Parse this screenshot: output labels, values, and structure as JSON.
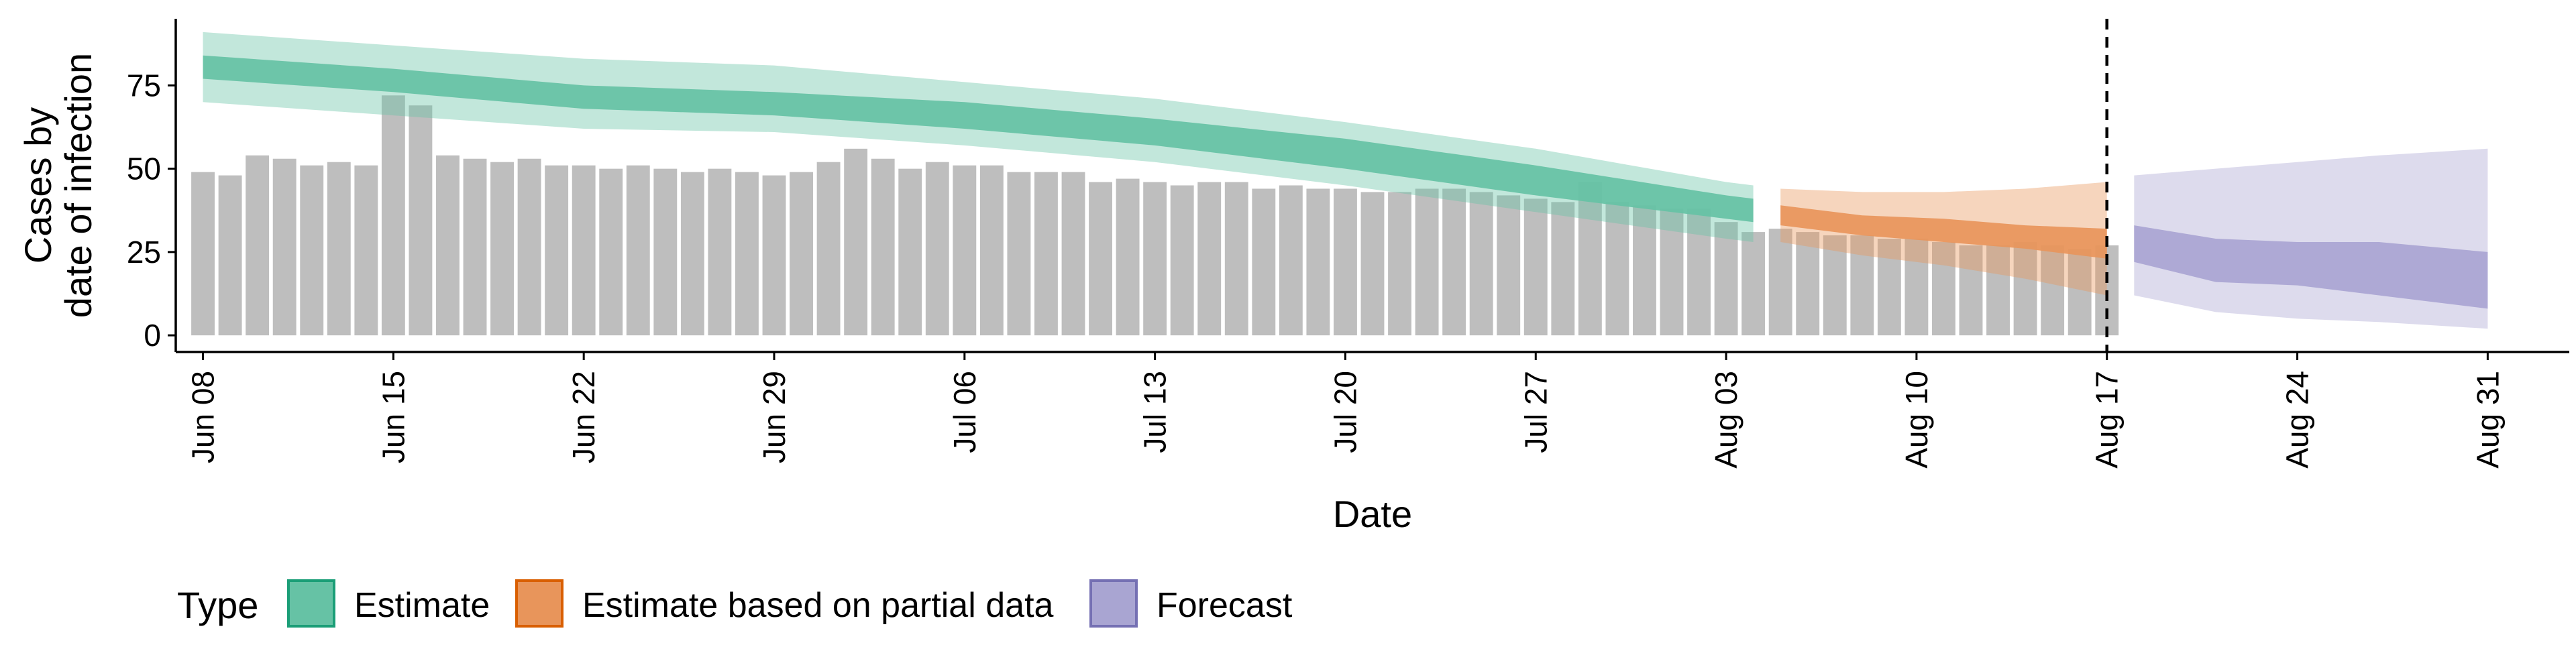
{
  "chart_data": {
    "type": "bar",
    "xlabel": "Date",
    "ylabel": "Cases by date of infection",
    "ylabel_lines": [
      "Cases by",
      "date of infection"
    ],
    "yticks": [
      0,
      25,
      50,
      75
    ],
    "ylim": [
      -5,
      95
    ],
    "xlim": [
      "2020-06-07",
      "2020-09-03"
    ],
    "xtick_labels": [
      "Jun 08",
      "Jun 15",
      "Jun 22",
      "Jun 29",
      "Jul 06",
      "Jul 13",
      "Jul 20",
      "Jul 27",
      "Aug 03",
      "Aug 10",
      "Aug 17",
      "Aug 24",
      "Aug 31"
    ],
    "xtick_dates": [
      "2020-06-08",
      "2020-06-15",
      "2020-06-22",
      "2020-06-29",
      "2020-07-06",
      "2020-07-13",
      "2020-07-20",
      "2020-07-27",
      "2020-08-03",
      "2020-08-10",
      "2020-08-17",
      "2020-08-24",
      "2020-08-31"
    ],
    "vline_date": "2020-08-17",
    "grid": false,
    "legend": {
      "title": "Type",
      "position": "bottom",
      "entries": [
        {
          "label": "Estimate",
          "fill": "#66C2A5",
          "border": "#1B9E77"
        },
        {
          "label": "Estimate based on partial data",
          "fill": "#E8955B",
          "border": "#D95F02"
        },
        {
          "label": "Forecast",
          "fill": "#A9A5D2",
          "border": "#7570B3"
        }
      ]
    },
    "bars": {
      "color": "#BEBEBE",
      "dates": [
        "2020-06-08",
        "2020-06-09",
        "2020-06-10",
        "2020-06-11",
        "2020-06-12",
        "2020-06-13",
        "2020-06-14",
        "2020-06-15",
        "2020-06-16",
        "2020-06-17",
        "2020-06-18",
        "2020-06-19",
        "2020-06-20",
        "2020-06-21",
        "2020-06-22",
        "2020-06-23",
        "2020-06-24",
        "2020-06-25",
        "2020-06-26",
        "2020-06-27",
        "2020-06-28",
        "2020-06-29",
        "2020-06-30",
        "2020-07-01",
        "2020-07-02",
        "2020-07-03",
        "2020-07-04",
        "2020-07-05",
        "2020-07-06",
        "2020-07-07",
        "2020-07-08",
        "2020-07-09",
        "2020-07-10",
        "2020-07-11",
        "2020-07-12",
        "2020-07-13",
        "2020-07-14",
        "2020-07-15",
        "2020-07-16",
        "2020-07-17",
        "2020-07-18",
        "2020-07-19",
        "2020-07-20",
        "2020-07-21",
        "2020-07-22",
        "2020-07-23",
        "2020-07-24",
        "2020-07-25",
        "2020-07-26",
        "2020-07-27",
        "2020-07-28",
        "2020-07-29",
        "2020-07-30",
        "2020-07-31",
        "2020-08-01",
        "2020-08-02",
        "2020-08-03",
        "2020-08-04",
        "2020-08-05",
        "2020-08-06",
        "2020-08-07",
        "2020-08-08",
        "2020-08-09",
        "2020-08-10",
        "2020-08-11",
        "2020-08-12",
        "2020-08-13",
        "2020-08-14",
        "2020-08-15",
        "2020-08-16",
        "2020-08-17"
      ],
      "values": [
        49,
        48,
        54,
        53,
        51,
        52,
        51,
        72,
        69,
        54,
        53,
        52,
        53,
        51,
        51,
        50,
        51,
        50,
        49,
        50,
        49,
        48,
        49,
        52,
        56,
        53,
        50,
        52,
        51,
        51,
        49,
        49,
        49,
        46,
        47,
        46,
        45,
        46,
        46,
        44,
        45,
        44,
        44,
        43,
        43,
        44,
        44,
        43,
        42,
        41,
        40,
        46,
        40,
        39,
        38,
        38,
        34,
        31,
        32,
        31,
        30,
        30,
        29,
        29,
        28,
        27,
        27,
        28,
        27,
        26,
        27
      ]
    },
    "series": [
      {
        "name": "Estimate",
        "fill": "#66C2A5",
        "dates": [
          "2020-06-08",
          "2020-06-15",
          "2020-06-22",
          "2020-06-29",
          "2020-07-06",
          "2020-07-13",
          "2020-07-20",
          "2020-07-27",
          "2020-08-03",
          "2020-08-04"
        ],
        "inner_upper": [
          84,
          80,
          75,
          73,
          70,
          65,
          59,
          51,
          42,
          41
        ],
        "inner_lower": [
          77,
          73,
          68,
          66,
          62,
          57,
          50,
          42,
          35,
          34
        ],
        "outer_upper": [
          91,
          87,
          83,
          81,
          76,
          71,
          64,
          56,
          46,
          45
        ],
        "outer_lower": [
          70,
          66,
          62,
          61,
          57,
          52,
          45,
          37,
          29,
          28
        ]
      },
      {
        "name": "Estimate based on partial data",
        "fill": "#E8955B",
        "dates": [
          "2020-08-05",
          "2020-08-08",
          "2020-08-11",
          "2020-08-14",
          "2020-08-17"
        ],
        "inner_upper": [
          39,
          36,
          35,
          33,
          32
        ],
        "inner_lower": [
          33,
          30,
          28,
          26,
          23
        ],
        "outer_upper": [
          44,
          43,
          43,
          44,
          46
        ],
        "outer_lower": [
          28,
          24,
          21,
          17,
          12
        ]
      },
      {
        "name": "Forecast",
        "fill": "#A9A5D2",
        "dates": [
          "2020-08-18",
          "2020-08-21",
          "2020-08-24",
          "2020-08-27",
          "2020-08-31"
        ],
        "inner_upper": [
          33,
          29,
          28,
          28,
          25
        ],
        "inner_lower": [
          22,
          16,
          15,
          12,
          8
        ],
        "outer_upper": [
          48,
          50,
          52,
          54,
          56
        ],
        "outer_lower": [
          12,
          7,
          5,
          4,
          2
        ]
      }
    ]
  }
}
